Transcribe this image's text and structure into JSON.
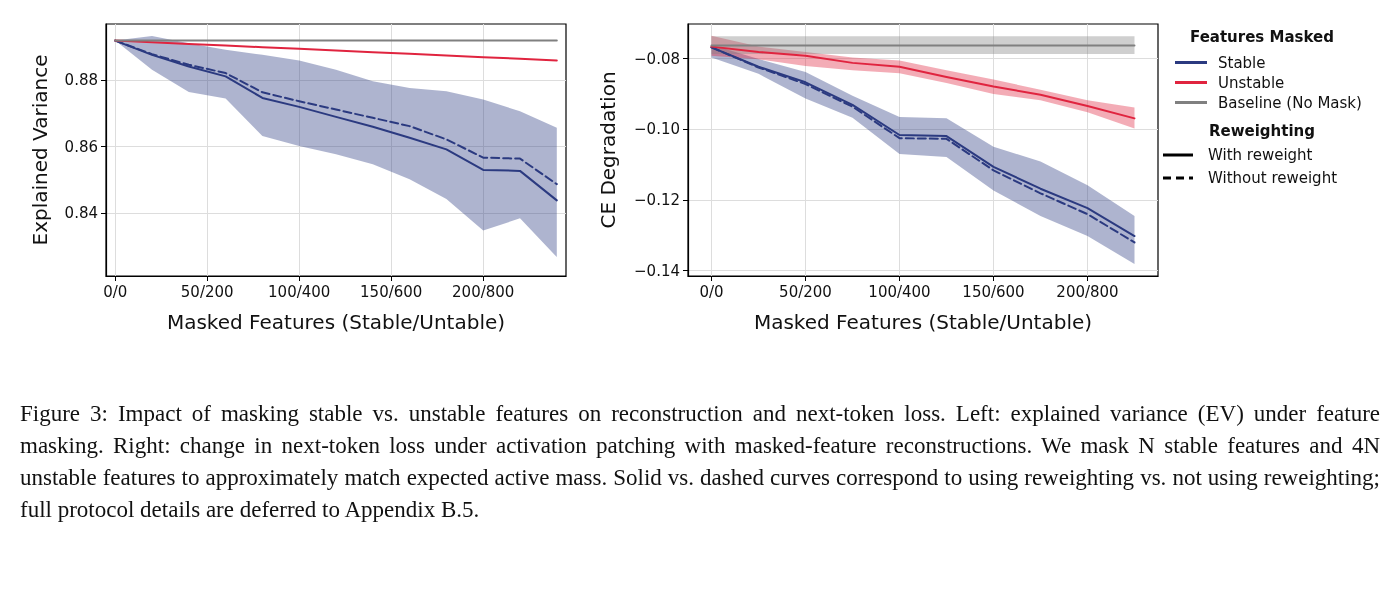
{
  "chart_data": [
    {
      "type": "line",
      "xlabel": "Masked Features (Stable/Untable)",
      "ylabel": "Explained Variance",
      "categories": [
        "0/0",
        null,
        null,
        null,
        null,
        "50/200",
        null,
        null,
        null,
        null,
        "100/400",
        null,
        null,
        null,
        null,
        "150/600",
        null,
        null,
        null,
        null,
        "200/800",
        null,
        null,
        null,
        null
      ],
      "ylim": [
        0.821,
        0.897
      ],
      "yticks": [
        0.84,
        0.86,
        0.88
      ],
      "grid": true,
      "series": [
        {
          "color": "#2b3a80",
          "line_style": "solid",
          "values": [
            0.892,
            null,
            0.8877,
            null,
            0.8842,
            null,
            0.8812,
            null,
            0.8747,
            null,
            0.872,
            null,
            0.869,
            null,
            0.866,
            null,
            0.8627,
            null,
            0.8592,
            null,
            0.853,
            null,
            0.8527,
            null,
            0.8438
          ],
          "lower": [
            0.892,
            null,
            0.8832,
            null,
            0.8765,
            null,
            0.8745,
            null,
            0.8632,
            null,
            0.8602,
            null,
            0.8577,
            null,
            0.8547,
            null,
            0.8502,
            null,
            0.8442,
            null,
            0.8347,
            null,
            0.8384,
            null,
            0.8267
          ],
          "upper": [
            0.892,
            null,
            0.8934,
            null,
            0.8912,
            null,
            0.8892,
            null,
            0.8877,
            null,
            0.886,
            null,
            0.8832,
            null,
            0.8797,
            null,
            0.8777,
            null,
            0.8767,
            null,
            0.8742,
            null,
            0.8707,
            null,
            0.8657
          ]
        },
        {
          "color": "#2b3a80",
          "line_style": "dashed",
          "values": [
            0.892,
            null,
            0.8879,
            null,
            0.8847,
            null,
            0.8822,
            null,
            0.8764,
            null,
            0.8737,
            null,
            0.8712,
            null,
            0.8687,
            null,
            0.8662,
            null,
            0.8622,
            null,
            0.8567,
            null,
            0.8564,
            null,
            0.8487
          ]
        },
        {
          "color": "#e0243f",
          "line_style": "solid",
          "values": [
            0.892,
            null,
            0.8915,
            null,
            0.891,
            null,
            0.8905,
            null,
            0.89,
            null,
            0.8895,
            null,
            0.889,
            null,
            0.8885,
            null,
            0.888,
            null,
            0.8875,
            null,
            0.887,
            null,
            0.8865,
            null,
            0.886
          ]
        },
        {
          "color": "#808080",
          "line_style": "solid",
          "values": [
            0.892,
            null,
            0.892,
            null,
            0.892,
            null,
            0.892,
            null,
            0.892,
            null,
            0.892,
            null,
            0.892,
            null,
            0.892,
            null,
            0.892,
            null,
            0.892,
            null,
            0.892,
            null,
            0.892,
            null,
            0.892
          ]
        }
      ],
      "annotations": [
        "Figure 3: Impact of masking stable vs. unstable features on reconstruction and next-token loss. Left: explained variance (EV) under feature masking. Right: change in next-token loss under activation patching with masked-feature reconstructions. We mask N stable features and 4N unstable features to approximately match expected active mass. Solid vs. dashed curves correspond to using reweighting vs. not using reweighting; full protocol details are deferred to Appendix B.5."
      ]
    },
    {
      "type": "line",
      "xlabel": "Masked Features (Stable/Untable)",
      "ylabel": "CE Degradation",
      "categories": [
        "0/0",
        null,
        "50/200",
        null,
        "100/400",
        null,
        "150/600",
        null,
        "200/800",
        null
      ],
      "ylim": [
        -0.1415,
        -0.0702
      ],
      "yticks": [
        {
          "value": -0.14,
          "label": "−0.14"
        },
        {
          "value": -0.12,
          "label": "−0.12"
        },
        {
          "value": -0.1,
          "label": "−0.10"
        },
        {
          "value": -0.08,
          "label": "−0.08"
        }
      ],
      "grid": true,
      "legend": "right",
      "legend_title": "Features Masked",
      "series": [
        {
          "name": "Stable",
          "color": "#2b3a80",
          "line_style": "solid",
          "values": [
            -0.0768,
            -0.0823,
            -0.0867,
            -0.0931,
            -0.1016,
            -0.1019,
            -0.1106,
            -0.1168,
            -0.1223,
            -0.1302
          ],
          "lower": [
            -0.0797,
            -0.0843,
            -0.0913,
            -0.0967,
            -0.107,
            -0.1078,
            -0.1173,
            -0.1245,
            -0.1302,
            -0.1381
          ],
          "upper": [
            -0.0761,
            -0.0801,
            -0.0838,
            -0.0905,
            -0.0965,
            -0.0969,
            -0.1049,
            -0.1091,
            -0.1158,
            -0.1245
          ]
        },
        {
          "color": "#2b3a80",
          "line_style": "dashed",
          "values": [
            -0.0768,
            -0.0825,
            -0.0872,
            -0.0936,
            -0.1025,
            -0.1027,
            -0.1116,
            -0.1181,
            -0.124,
            -0.132
          ]
        },
        {
          "name": "Unstable",
          "color": "#e0243f",
          "line_style": "solid",
          "values": [
            -0.0766,
            -0.0781,
            -0.0792,
            -0.0812,
            -0.0823,
            -0.0852,
            -0.0879,
            -0.0902,
            -0.0934,
            -0.0969
          ],
          "lower": [
            -0.0792,
            -0.0802,
            -0.0821,
            -0.0833,
            -0.0841,
            -0.0869,
            -0.09,
            -0.0918,
            -0.0952,
            -0.0998
          ],
          "upper": [
            -0.0735,
            -0.0766,
            -0.0781,
            -0.0797,
            -0.0805,
            -0.0833,
            -0.0859,
            -0.0888,
            -0.0918,
            -0.0938
          ]
        },
        {
          "name": "Baseline (No Mask)",
          "color": "#808080",
          "line_style": "solid",
          "values": [
            -0.0763,
            -0.0763,
            -0.0763,
            -0.0763,
            -0.0763,
            -0.0763,
            -0.0763,
            -0.0763,
            -0.0763,
            -0.0763
          ],
          "lower": [
            -0.0787,
            -0.0787,
            -0.0787,
            -0.0787,
            -0.0787,
            -0.0787,
            -0.0787,
            -0.0787,
            -0.0787,
            -0.0787
          ],
          "upper": [
            -0.0737,
            -0.0737,
            -0.0737,
            -0.0737,
            -0.0737,
            -0.0737,
            -0.0737,
            -0.0737,
            -0.0737,
            -0.0737
          ]
        }
      ],
      "annotations": [
        "Reweighting",
        "With reweight",
        "Without reweight"
      ]
    }
  ]
}
